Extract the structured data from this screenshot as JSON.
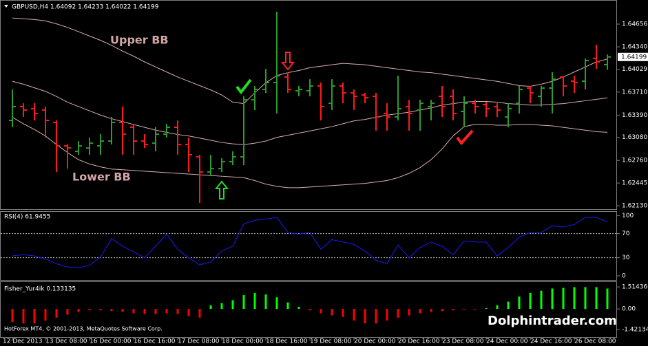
{
  "chart_data": [
    {
      "type": "ohlc",
      "title": "GBPUSD,H4  1.64092 1.64233 1.64022 1.64199",
      "annotations": [
        "Upper BB",
        "Lower BB"
      ],
      "categories": [
        "12 Dec 2013",
        null,
        null,
        "13 Dec 08:00",
        null,
        null,
        null,
        "16 Dec 00:00",
        null,
        null,
        null,
        "16 Dec 16:00",
        null,
        null,
        null,
        "17 Dec 08:00",
        null,
        null,
        null,
        "18 Dec 00:00",
        null,
        null,
        null,
        "18 Dec 16:00",
        null,
        null,
        null,
        "19 Dec 08:00",
        null,
        null,
        null,
        "20 Dec 00:00",
        null,
        null,
        null,
        "20 Dec 16:00",
        null,
        null,
        null,
        "23 Dec 08:00",
        null,
        null,
        null,
        "24 Dec 00:00",
        null,
        null,
        null,
        "24 Dec 16:00",
        null,
        null,
        null,
        "26 Dec 08:00",
        null,
        null,
        null
      ],
      "open": [
        1.63316,
        1.63508,
        1.63479,
        1.6346,
        1.63288,
        1.62962,
        1.62886,
        1.62933,
        1.62962,
        1.63029,
        1.63288,
        1.63221,
        1.63029,
        1.63,
        1.63125,
        1.63221,
        1.62981,
        1.62809,
        1.62598,
        1.62646,
        1.62742,
        1.62809,
        1.63603,
        1.63747,
        1.63843,
        1.63919,
        1.63728,
        1.63728,
        1.63795,
        1.63555,
        1.63795,
        1.63699,
        1.6367,
        1.63651,
        1.63412,
        1.63364,
        1.63508,
        1.6346,
        1.63508,
        1.63651,
        1.63651,
        1.63441,
        1.63555,
        1.63536,
        1.63508,
        1.63364,
        1.63555,
        1.63766,
        1.63651,
        1.63766,
        1.63919,
        1.63862,
        1.63862,
        1.64178,
        1.64092
      ],
      "high": [
        1.63747,
        1.63555,
        1.63555,
        1.63508,
        1.63316,
        1.62981,
        1.63029,
        1.63077,
        1.63125,
        1.63364,
        1.63508,
        1.63268,
        1.63125,
        1.63221,
        1.63268,
        1.63316,
        1.63077,
        1.62838,
        1.62838,
        1.6279,
        1.62886,
        1.63651,
        1.63795,
        1.64034,
        1.64828,
        1.63986,
        1.63795,
        1.6389,
        1.63843,
        1.6389,
        1.63843,
        1.63747,
        1.63699,
        1.63699,
        1.63555,
        1.63938,
        1.63603,
        1.63603,
        1.63603,
        1.63795,
        1.63747,
        1.63651,
        1.63603,
        1.63575,
        1.63555,
        1.63555,
        1.63795,
        1.63795,
        1.63795,
        1.63986,
        1.63938,
        1.63938,
        1.64178,
        1.64369,
        1.64233
      ],
      "low": [
        1.63221,
        1.63364,
        1.63316,
        1.63077,
        1.62598,
        1.62646,
        1.62838,
        1.62838,
        1.62838,
        1.62981,
        1.62838,
        1.62838,
        1.62933,
        1.62886,
        1.63077,
        1.62838,
        1.62598,
        1.62168,
        1.62551,
        1.62598,
        1.62694,
        1.62694,
        1.6346,
        1.63699,
        1.63412,
        1.63699,
        1.63651,
        1.63651,
        1.63316,
        1.6346,
        1.63555,
        1.6346,
        1.63555,
        1.63173,
        1.63173,
        1.63316,
        1.63173,
        1.63173,
        1.63316,
        1.63364,
        1.63316,
        1.63221,
        1.63412,
        1.63364,
        1.63364,
        1.63221,
        1.63412,
        1.63555,
        1.63508,
        1.63412,
        1.63651,
        1.63699,
        1.63747,
        1.64034,
        1.64022
      ],
      "close": [
        1.63508,
        1.6346,
        1.63412,
        1.63316,
        1.62962,
        1.62933,
        1.62962,
        1.63,
        1.63029,
        1.63288,
        1.63125,
        1.63029,
        1.62981,
        1.63125,
        1.63221,
        1.62981,
        1.62838,
        1.62598,
        1.62646,
        1.62742,
        1.62809,
        1.63603,
        1.63747,
        1.63843,
        1.63938,
        1.63747,
        1.63747,
        1.63795,
        1.63508,
        1.63795,
        1.63699,
        1.63651,
        1.63632,
        1.63364,
        1.63364,
        1.63479,
        1.63412,
        1.63555,
        1.63555,
        1.63508,
        1.63412,
        1.63555,
        1.63508,
        1.63479,
        1.6346,
        1.63479,
        1.63747,
        1.63699,
        1.63766,
        1.6389,
        1.63795,
        1.63843,
        1.64149,
        1.6413,
        1.64199
      ],
      "bands": {
        "color": "#d9aeb0",
        "upper": [
          1.6474,
          1.6473,
          1.6472,
          1.647,
          1.6466,
          1.6461,
          1.6455,
          1.6449,
          1.6443,
          1.6436,
          1.6428,
          1.6421,
          1.6413,
          1.6406,
          1.6399,
          1.6392,
          1.6386,
          1.638,
          1.6374,
          1.6367,
          1.6357,
          1.6355,
          1.637,
          1.6384,
          1.6394,
          1.6398,
          1.6401,
          1.6405,
          1.6407,
          1.6409,
          1.6411,
          1.641,
          1.6409,
          1.6407,
          1.6405,
          1.6403,
          1.6401,
          1.6399,
          1.6398,
          1.6396,
          1.6394,
          1.6392,
          1.639,
          1.6388,
          1.6386,
          1.6383,
          1.638,
          1.6379,
          1.6382,
          1.6386,
          1.6392,
          1.6399,
          1.6406,
          1.6413,
          1.6417
        ],
        "middle": [
          1.6386,
          1.6382,
          1.6377,
          1.6372,
          1.6365,
          1.6357,
          1.6351,
          1.6345,
          1.6339,
          1.6334,
          1.633,
          1.6326,
          1.6322,
          1.6318,
          1.6315,
          1.6312,
          1.631,
          1.6307,
          1.6304,
          1.6301,
          1.6299,
          1.6298,
          1.63,
          1.6303,
          1.6308,
          1.6311,
          1.6314,
          1.6317,
          1.632,
          1.6323,
          1.6327,
          1.6331,
          1.6333,
          1.6336,
          1.6339,
          1.6341,
          1.6343,
          1.6346,
          1.6349,
          1.6353,
          1.6355,
          1.6357,
          1.6358,
          1.6358,
          1.6357,
          1.6355,
          1.6354,
          1.6353,
          1.6353,
          1.6354,
          1.6355,
          1.6357,
          1.6359,
          1.6361,
          1.6363
        ],
        "lower": [
          1.6336,
          1.6327,
          1.6319,
          1.631,
          1.6298,
          1.6287,
          1.6277,
          1.6271,
          1.6267,
          1.6264,
          1.6263,
          1.6262,
          1.6261,
          1.626,
          1.6259,
          1.6258,
          1.6257,
          1.6256,
          1.6255,
          1.6254,
          1.6253,
          1.6252,
          1.6248,
          1.6243,
          1.624,
          1.6238,
          1.6238,
          1.6239,
          1.624,
          1.6241,
          1.6242,
          1.6243,
          1.6244,
          1.6246,
          1.6248,
          1.6252,
          1.6258,
          1.6266,
          1.6277,
          1.6292,
          1.631,
          1.6323,
          1.6326,
          1.6326,
          1.6325,
          1.6325,
          1.6326,
          1.6326,
          1.6325,
          1.6324,
          1.6322,
          1.632,
          1.6318,
          1.6316,
          1.6315
        ]
      },
      "up_color": "#2e9b2e",
      "down_color": "#ff1a1a",
      "ylim": [
        1.62073,
        1.64991
      ],
      "yticks": [
        1.64656,
        {
          "value": 1.6434,
          "label": "1.64340"
        },
        1.64029,
        {
          "value": 1.6371,
          "label": "1.63710"
        },
        {
          "value": 1.6339,
          "label": "1.63390"
        },
        {
          "value": 1.6308,
          "label": "1.63080"
        },
        {
          "value": 1.6276,
          "label": "1.62760"
        },
        1.62445,
        {
          "value": 1.6213,
          "label": "1.62130"
        }
      ]
    },
    {
      "type": "line",
      "title": "RSI(4) 61.9455",
      "values": [
        33,
        35,
        33,
        28,
        20,
        15,
        13,
        18,
        31,
        62,
        49,
        40,
        30,
        49,
        69,
        44,
        30,
        18,
        23,
        41,
        49,
        86,
        92,
        94,
        97,
        72,
        69,
        72,
        44,
        60,
        56,
        52,
        41,
        26,
        20,
        51,
        30,
        47,
        56,
        49,
        35,
        58,
        56,
        56,
        33,
        47,
        64,
        72,
        72,
        83,
        81,
        85,
        97,
        97,
        89
      ],
      "color": "#1a1aff",
      "levels": [
        70,
        30
      ],
      "ylim": [
        -8,
        106
      ],
      "yticks": [
        100,
        70,
        30,
        0
      ]
    },
    {
      "type": "histogram",
      "title": "Fisher_Yur4ik 0.133135",
      "values": [
        -0.9,
        -1.0,
        -1.0,
        -0.8,
        -0.6,
        -0.4,
        -0.2,
        -0.1,
        -0.1,
        -0.15,
        -0.2,
        -0.3,
        -0.35,
        -0.35,
        -0.3,
        -0.35,
        -0.5,
        -0.6,
        0.25,
        0.4,
        0.6,
        0.95,
        1.1,
        1.0,
        0.8,
        0.45,
        0.15,
        -0.1,
        -0.3,
        -0.45,
        -0.55,
        -0.8,
        -1.0,
        -1.0,
        -0.8,
        -0.6,
        -0.45,
        -0.3,
        -0.2,
        -0.15,
        -0.1,
        -0.05,
        -0.05,
        0.05,
        0.25,
        0.5,
        0.85,
        1.1,
        1.25,
        1.4,
        1.45,
        1.5,
        1.5,
        1.5,
        1.4
      ],
      "up_color": "#00ff00",
      "down_color": "#ff0000",
      "ylim": [
        -2.03,
        1.85
      ],
      "yticks": [
        1.514366,
        {
          "value": 0,
          "label": "0.00"
        },
        -1.42134
      ]
    }
  ],
  "copyright": "HotForex MT4, © 2001-2013, MetaQuotes Software Corp.",
  "watermark": "Dolphintrader.com"
}
